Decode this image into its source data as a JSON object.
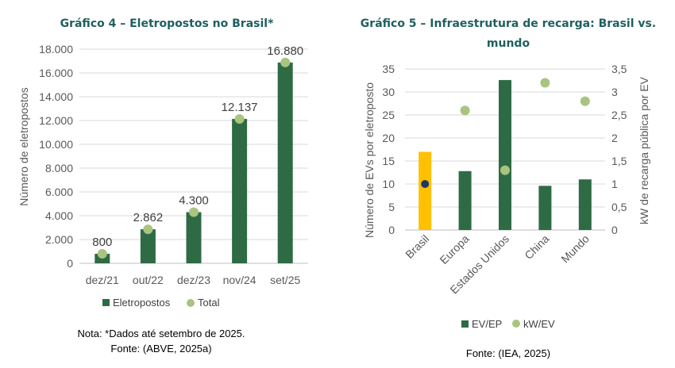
{
  "colors": {
    "bar_dark_green": "#2e6b45",
    "bar_brazil_orange": "#ffc000",
    "dot_light_green": "#a9c47f",
    "dot_brazil_navy": "#1f3864",
    "title_teal": "#1f5f5f"
  },
  "chart_data": [
    {
      "type": "bar",
      "title": "Gráfico 4 – Eletropostos no Brasil*",
      "categories": [
        "dez/21",
        "out/22",
        "dez/23",
        "nov/24",
        "set/25"
      ],
      "series": [
        {
          "name": "Eletropostos",
          "type": "bar",
          "values": [
            800,
            2862,
            4300,
            12137,
            16880
          ]
        },
        {
          "name": "Total",
          "type": "scatter",
          "values": [
            800,
            2862,
            4300,
            12137,
            16880
          ]
        }
      ],
      "data_labels": [
        "800",
        "2.862",
        "4.300",
        "12.137",
        "16.880"
      ],
      "ylabel": "Número de eletropostos",
      "ylim": [
        0,
        18000
      ],
      "yticks": [
        0,
        2000,
        4000,
        6000,
        8000,
        10000,
        12000,
        14000,
        16000,
        18000
      ],
      "ytick_labels": [
        "0",
        "2.000",
        "4.000",
        "6.000",
        "8.000",
        "10.000",
        "12.000",
        "14.000",
        "16.000",
        "18.000"
      ],
      "grid": true,
      "legend": "bottom",
      "note": "Nota: *Dados até setembro de 2025.",
      "source": "Fonte: (ABVE, 2025a)"
    },
    {
      "type": "bar",
      "title_line1": "Gráfico 5 – Infraestrutura de recarga: Brasil vs.",
      "title_line2": "mundo",
      "categories": [
        "Brasil",
        "Europa",
        "Estados Unidos",
        "China",
        "Mundo"
      ],
      "series": [
        {
          "name": "EV/EP",
          "type": "bar",
          "axis": "left",
          "values": [
            17.0,
            12.8,
            32.6,
            9.6,
            11.0
          ]
        },
        {
          "name": "kW/EV",
          "type": "scatter",
          "axis": "right",
          "values": [
            1.0,
            2.6,
            1.3,
            3.2,
            2.8
          ]
        }
      ],
      "ylabel": "Número de EVs por eletroposto",
      "ylim": [
        0,
        35
      ],
      "yticks": [
        0,
        5,
        10,
        15,
        20,
        25,
        30,
        35
      ],
      "ytick_labels": [
        "0",
        "5",
        "10",
        "15",
        "20",
        "25",
        "30",
        "35"
      ],
      "y2label": "kW de recarga pública por EV",
      "y2lim": [
        0,
        3.5
      ],
      "y2ticks": [
        0,
        0.5,
        1,
        1.5,
        2,
        2.5,
        3,
        3.5
      ],
      "y2tick_labels": [
        "0",
        "0,5",
        "1",
        "1,5",
        "2",
        "2,5",
        "3",
        "3,5"
      ],
      "grid": true,
      "legend": "bottom",
      "source": "Fonte: (IEA, 2025)"
    }
  ]
}
